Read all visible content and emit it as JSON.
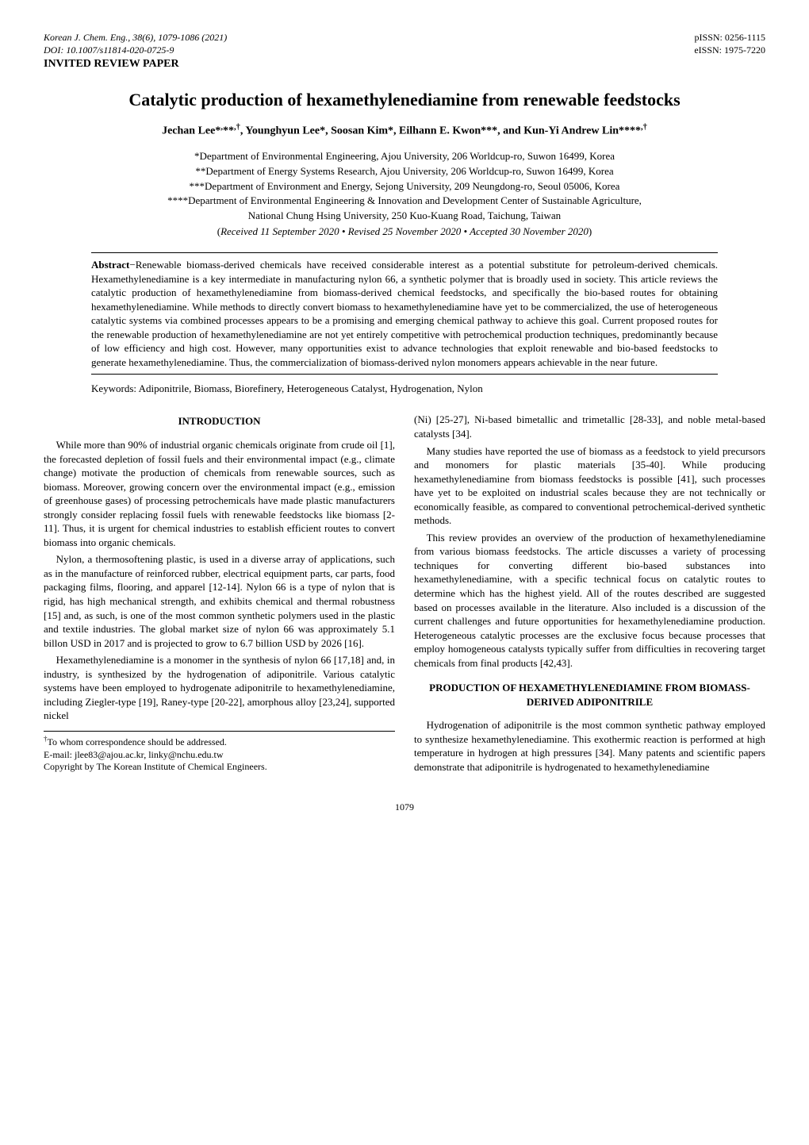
{
  "journal": {
    "citation": "Korean J. Chem. Eng., 38(6), 1079-1086 (2021)",
    "doi": "DOI: 10.1007/s11814-020-0725-9",
    "pissn": "pISSN: 0256-1115",
    "eissn": "eISSN: 1975-7220",
    "paper_type": "INVITED REVIEW PAPER"
  },
  "title": "Catalytic production of hexamethylenediamine from renewable feedstocks",
  "authors_html": "Jechan Lee*<sup>,</sup>**<sup>,†</sup>, Younghyun Lee*, Soosan Kim*, Eilhann E. Kwon***, and Kun-Yi Andrew Lin****<sup>,†</sup>",
  "affiliations": {
    "a1": "*Department of Environmental Engineering, Ajou University, 206 Worldcup-ro, Suwon 16499, Korea",
    "a2": "**Department of Energy Systems Research, Ajou University, 206 Worldcup-ro, Suwon 16499, Korea",
    "a3": "***Department of Environment and Energy, Sejong University, 209 Neungdong-ro, Seoul 05006, Korea",
    "a4": "****Department of Environmental Engineering & Innovation and Development Center of Sustainable Agriculture,",
    "a5": "National Chung Hsing University, 250 Kuo-Kuang Road, Taichung, Taiwan"
  },
  "dates_html": "(<i>Received 11 September 2020 • Revised 25 November 2020 • Accepted 30 November 2020</i>)",
  "abstract": {
    "label_html": "<b>Abstract</b>−",
    "text": "Renewable biomass-derived chemicals have received considerable interest as a potential substitute for petroleum-derived chemicals. Hexamethylenediamine is a key intermediate in manufacturing nylon 66, a synthetic polymer that is broadly used in society. This article reviews the catalytic production of hexamethylenediamine from biomass-derived chemical feedstocks, and specifically the bio-based routes for obtaining hexamethylenediamine. While methods to directly convert biomass to hexamethylenediamine have yet to be commercialized, the use of heterogeneous catalytic systems via combined processes appears to be a promising and emerging chemical pathway to achieve this goal. Current proposed routes for the renewable production of hexamethylenediamine are not yet entirely competitive with petrochemical production techniques, predominantly because of low efficiency and high cost. However, many opportunities exist to advance technologies that exploit renewable and bio-based feedstocks to generate hexamethylenediamine. Thus, the commercialization of biomass-derived nylon monomers appears achievable in the near future."
  },
  "keywords": "Keywords: Adiponitrile, Biomass, Biorefinery, Heterogeneous Catalyst, Hydrogenation, Nylon",
  "sections": {
    "intro_heading": "INTRODUCTION",
    "intro_p1": "While more than 90% of industrial organic chemicals originate from crude oil [1], the forecasted depletion of fossil fuels and their environmental impact (e.g., climate change) motivate the production of chemicals from renewable sources, such as biomass. Moreover, growing concern over the environmental impact (e.g., emission of greenhouse gases) of processing petrochemicals have made plastic manufacturers strongly consider replacing fossil fuels with renewable feedstocks like biomass [2-11]. Thus, it is urgent for chemical industries to establish efficient routes to convert biomass into organic chemicals.",
    "intro_p2": "Nylon, a thermosoftening plastic, is used in a diverse array of applications, such as in the manufacture of reinforced rubber, electrical equipment parts, car parts, food packaging films, flooring, and apparel [12-14]. Nylon 66 is a type of nylon that is rigid, has high mechanical strength, and exhibits chemical and thermal robustness [15] and, as such, is one of the most common synthetic polymers used in the plastic and textile industries. The global market size of nylon 66 was approximately 5.1 billon USD in 2017 and is projected to grow to 6.7 billion USD by 2026 [16].",
    "intro_p3": "Hexamethylenediamine is a monomer in the synthesis of nylon 66 [17,18] and, in industry, is synthesized by the hydrogenation of adiponitrile. Various catalytic systems have been employed to hydrogenate adiponitrile to hexamethylenediamine, including Ziegler-type [19], Raney-type [20-22], amorphous alloy [23,24], supported nickel",
    "intro_p4": "(Ni) [25-27], Ni-based bimetallic and trimetallic [28-33], and noble metal-based catalysts [34].",
    "intro_p5": "Many studies have reported the use of biomass as a feedstock to yield precursors and monomers for plastic materials [35-40]. While producing hexamethylenediamine from biomass feedstocks is possible [41], such processes have yet to be exploited on industrial scales because they are not technically or economically feasible, as compared to conventional petrochemical-derived synthetic methods.",
    "intro_p6": "This review provides an overview of the production of hexamethylenediamine from various biomass feedstocks. The article discusses a variety of processing techniques for converting different bio-based substances into hexamethylenediamine, with a specific technical focus on catalytic routes to determine which has the highest yield. All of the routes described are suggested based on processes available in the literature. Also included is a discussion of the current challenges and future opportunities for hexamethylenediamine production. Heterogeneous catalytic processes are the exclusive focus because processes that employ homogeneous catalysts typically suffer from difficulties in recovering target chemicals from final products [42,43].",
    "sec2_heading": "PRODUCTION OF HEXAMETHYLENEDIAMINE FROM BIOMASS-DERIVED ADIPONITRILE",
    "sec2_p1": "Hydrogenation of adiponitrile is the most common synthetic pathway employed to synthesize hexamethylenediamine. This exothermic reaction is performed at high temperature in hydrogen at high pressures [34]. Many patents and scientific papers demonstrate that adiponitrile is hydrogenated to hexamethylenediamine"
  },
  "footnotes": {
    "f1_html": "<sup>†</sup>To whom correspondence should be addressed.",
    "f2": "E-mail: jlee83@ajou.ac.kr, linky@nchu.edu.tw",
    "f3": "Copyright by The Korean Institute of Chemical Engineers."
  },
  "page_number": "1079"
}
